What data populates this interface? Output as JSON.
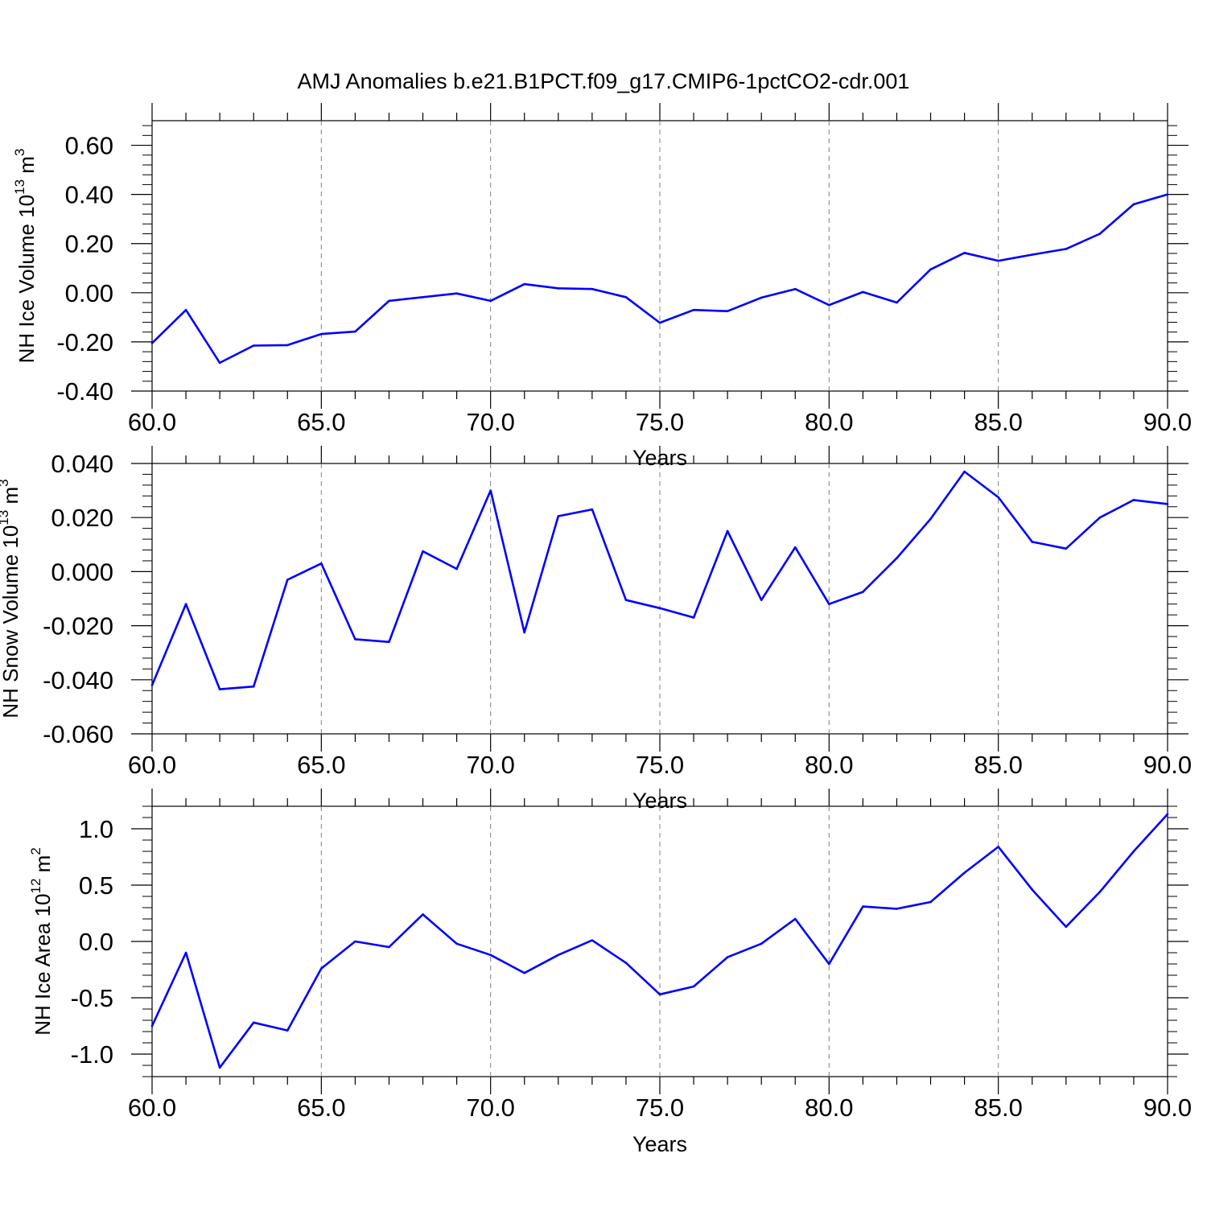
{
  "title": "AMJ Anomalies b.e21.B1PCT.f09_g17.CMIP6-1pctCO2-cdr.001",
  "colors": {
    "line": "#0000ff",
    "axis": "#000000",
    "grid": "#808080"
  },
  "chart_data": [
    {
      "type": "line",
      "ylabel": "NH Ice Volume",
      "yunit_base": "10",
      "yunit_exp": "13",
      "yunit_suffix": "m",
      "yunit_suffix_exp": "3",
      "xlabel": "Years",
      "xlim": [
        60,
        90
      ],
      "ylim": [
        -0.4,
        0.7
      ],
      "xticks": [
        60,
        65,
        70,
        75,
        80,
        85,
        90
      ],
      "xtick_labels": [
        "60.0",
        "65.0",
        "70.0",
        "75.0",
        "80.0",
        "85.0",
        "90.0"
      ],
      "yticks": [
        -0.4,
        -0.2,
        0.0,
        0.2,
        0.4,
        0.6
      ],
      "ytick_labels": [
        "-0.40",
        "-0.20",
        "0.00",
        "0.20",
        "0.40",
        "0.60"
      ],
      "vgrid": [
        65,
        70,
        75,
        80,
        85
      ],
      "x": [
        60,
        61,
        62,
        63,
        64,
        65,
        66,
        67,
        68,
        69,
        70,
        71,
        72,
        73,
        74,
        75,
        76,
        77,
        78,
        79,
        80,
        81,
        82,
        83,
        84,
        85,
        86,
        87,
        88,
        89,
        90
      ],
      "y": [
        -0.205,
        -0.07,
        -0.285,
        -0.215,
        -0.213,
        -0.168,
        -0.158,
        -0.033,
        -0.018,
        -0.003,
        -0.033,
        0.035,
        0.018,
        0.015,
        -0.018,
        -0.122,
        -0.07,
        -0.075,
        -0.02,
        0.015,
        -0.05,
        0.003,
        -0.04,
        0.095,
        0.162,
        0.13,
        0.155,
        0.178,
        0.24,
        0.36,
        0.4
      ]
    },
    {
      "type": "line",
      "ylabel": "NH Snow Volume",
      "yunit_base": "10",
      "yunit_exp": "13",
      "yunit_suffix": "m",
      "yunit_suffix_exp": "3",
      "xlabel": "Years",
      "xlim": [
        60,
        90
      ],
      "ylim": [
        -0.06,
        0.04
      ],
      "xticks": [
        60,
        65,
        70,
        75,
        80,
        85,
        90
      ],
      "xtick_labels": [
        "60.0",
        "65.0",
        "70.0",
        "75.0",
        "80.0",
        "85.0",
        "90.0"
      ],
      "yticks": [
        -0.06,
        -0.04,
        -0.02,
        0.0,
        0.02,
        0.04
      ],
      "ytick_labels": [
        "-0.060",
        "-0.040",
        "-0.020",
        "0.000",
        "0.020",
        "0.040"
      ],
      "vgrid": [
        65,
        70,
        75,
        80,
        85
      ],
      "x": [
        60,
        61,
        62,
        63,
        64,
        65,
        66,
        67,
        68,
        69,
        70,
        71,
        72,
        73,
        74,
        75,
        76,
        77,
        78,
        79,
        80,
        81,
        82,
        83,
        84,
        85,
        86,
        87,
        88,
        89,
        90
      ],
      "y": [
        -0.042,
        -0.012,
        -0.0435,
        -0.0425,
        -0.003,
        0.003,
        -0.025,
        -0.026,
        0.0075,
        0.001,
        0.03,
        -0.0225,
        0.0205,
        0.023,
        -0.0105,
        -0.0135,
        -0.017,
        0.015,
        -0.0105,
        0.009,
        -0.012,
        -0.0075,
        0.005,
        0.0195,
        0.037,
        0.0275,
        0.011,
        0.0085,
        0.02,
        0.0265,
        0.025
      ]
    },
    {
      "type": "line",
      "ylabel": "NH Ice Area",
      "yunit_base": "10",
      "yunit_exp": "12",
      "yunit_suffix": "m",
      "yunit_suffix_exp": "2",
      "xlabel": "Years",
      "xlim": [
        60,
        90
      ],
      "ylim": [
        -1.2,
        1.2
      ],
      "xticks": [
        60,
        65,
        70,
        75,
        80,
        85,
        90
      ],
      "xtick_labels": [
        "60.0",
        "65.0",
        "70.0",
        "75.0",
        "80.0",
        "85.0",
        "90.0"
      ],
      "yticks": [
        -1.0,
        -0.5,
        0.0,
        0.5,
        1.0
      ],
      "ytick_labels": [
        "-1.0",
        "-0.5",
        "0.0",
        "0.5",
        "1.0"
      ],
      "vgrid": [
        65,
        70,
        75,
        80,
        85
      ],
      "x": [
        60,
        61,
        62,
        63,
        64,
        65,
        66,
        67,
        68,
        69,
        70,
        71,
        72,
        73,
        74,
        75,
        76,
        77,
        78,
        79,
        80,
        81,
        82,
        83,
        84,
        85,
        86,
        87,
        88,
        89,
        90
      ],
      "y": [
        -0.75,
        -0.1,
        -1.12,
        -0.72,
        -0.79,
        -0.24,
        0.0,
        -0.05,
        0.24,
        -0.02,
        -0.12,
        -0.28,
        -0.12,
        0.01,
        -0.19,
        -0.47,
        -0.4,
        -0.14,
        -0.02,
        0.2,
        -0.2,
        0.31,
        0.29,
        0.35,
        0.61,
        0.84,
        0.46,
        0.13,
        0.44,
        0.8,
        1.13
      ]
    }
  ]
}
